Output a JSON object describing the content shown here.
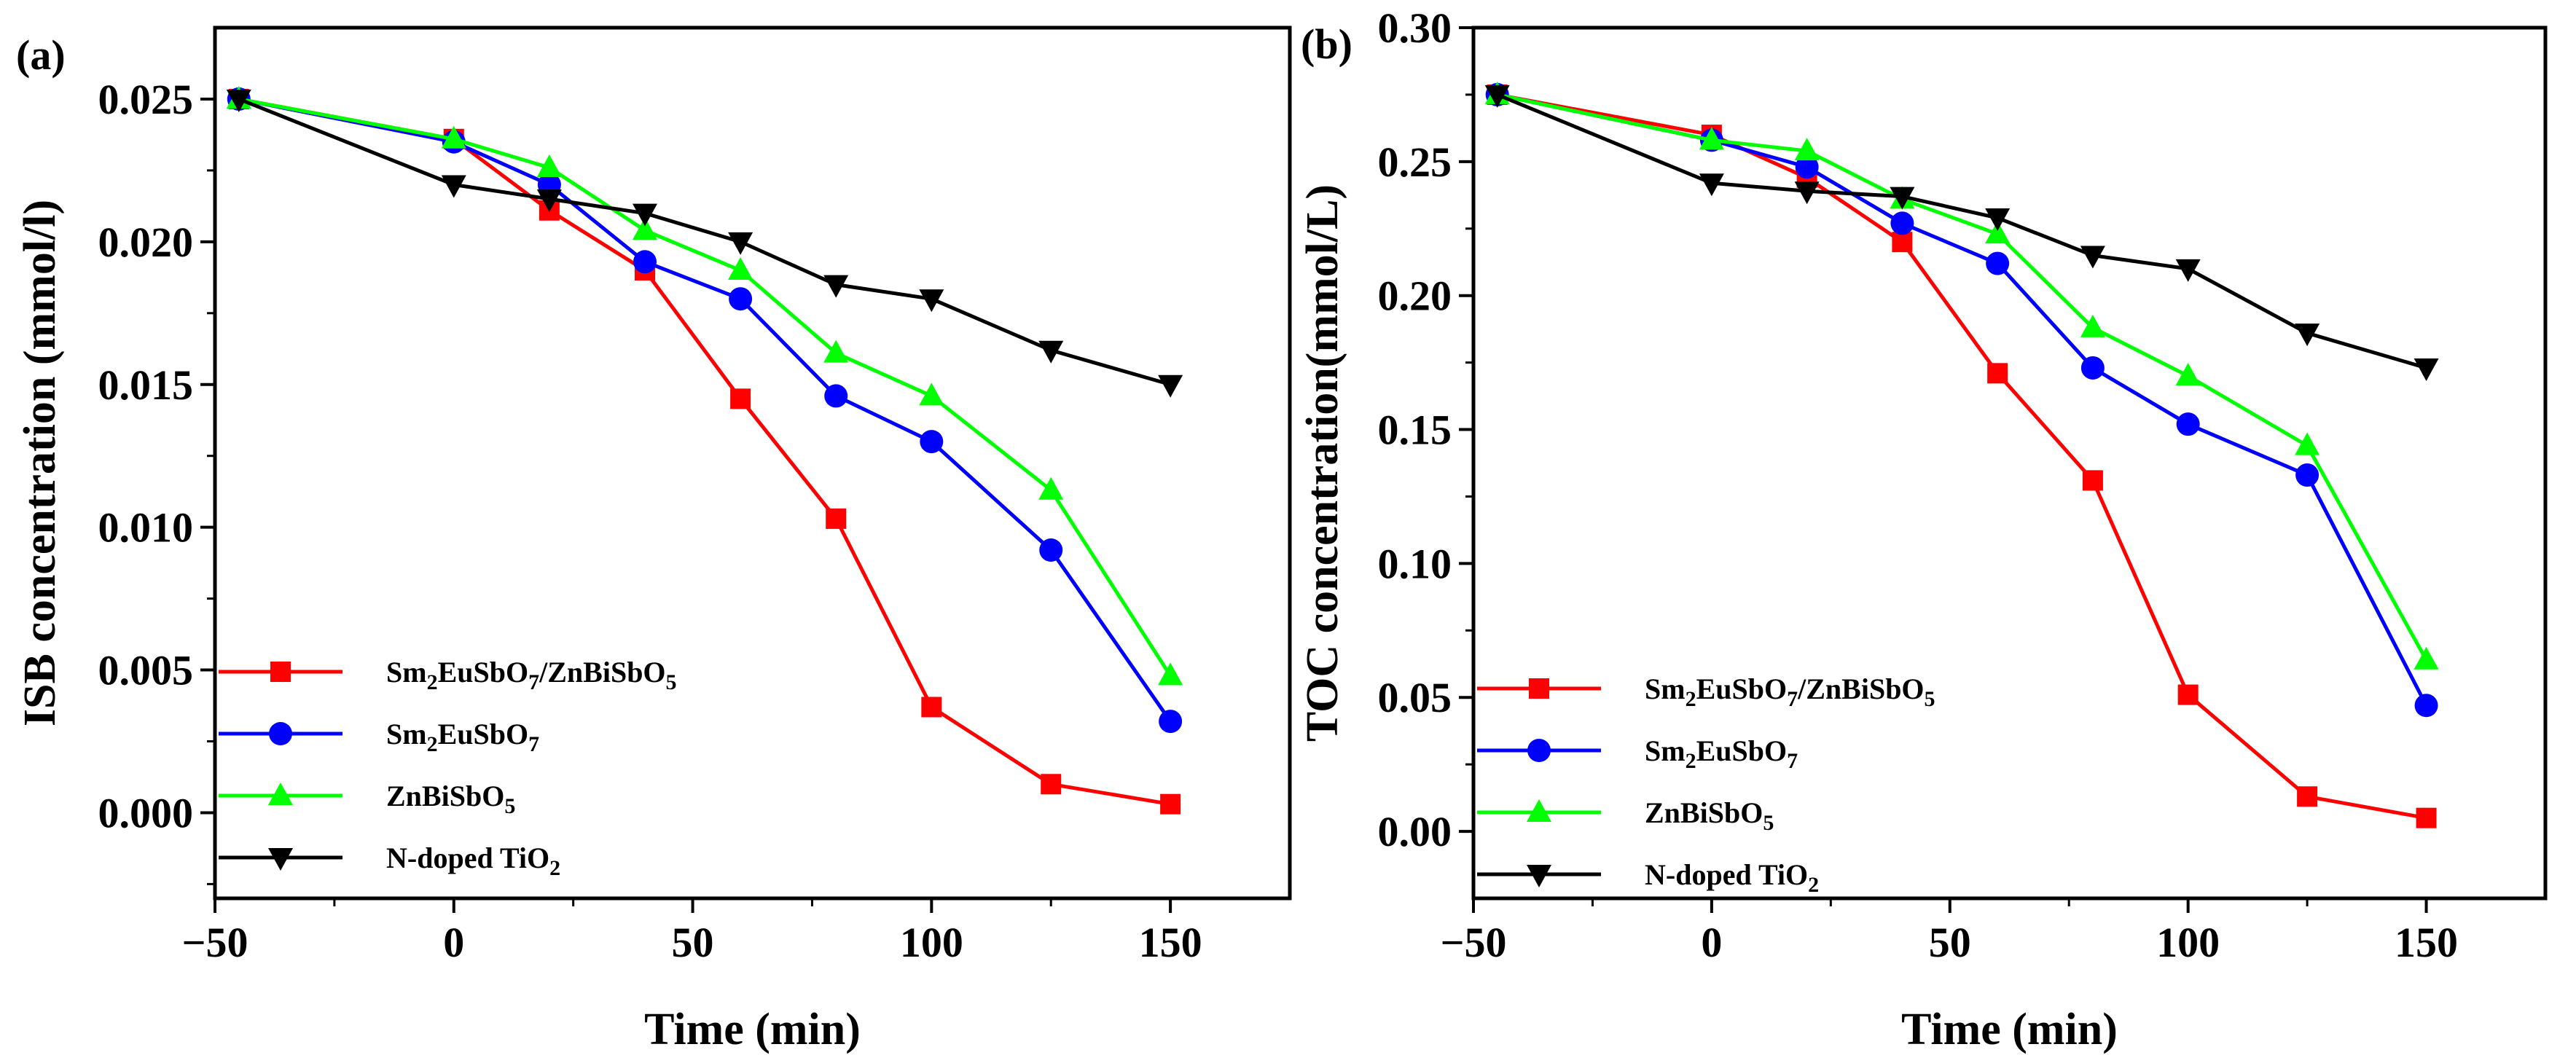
{
  "chart_data": [
    {
      "type": "line",
      "panel_label": "(a)",
      "xlabel": "Time (min)",
      "ylabel": "ISB concentration (mmol/l)",
      "xlim": [
        -50,
        175
      ],
      "ylim": [
        -0.003,
        0.0275
      ],
      "xticks": [
        -50,
        0,
        50,
        100,
        150
      ],
      "xtick_labels": [
        "−50",
        "0",
        "50",
        "100",
        "150"
      ],
      "yticks": [
        0.0,
        0.005,
        0.01,
        0.015,
        0.02,
        0.025
      ],
      "ytick_labels": [
        "0.000",
        "0.005",
        "0.010",
        "0.015",
        "0.020",
        "0.025"
      ],
      "legend_position": "bottom-left",
      "series": [
        {
          "name": "Sm2EuSbO7/ZnBiSbO5",
          "label_parts": [
            [
              "Sm",
              ""
            ],
            [
              "2",
              "sub"
            ],
            [
              "EuSbO",
              ""
            ],
            [
              "7",
              "sub"
            ],
            [
              "/ZnBiSbO",
              ""
            ],
            [
              "5",
              "sub"
            ]
          ],
          "color": "#ff0000",
          "marker": "square",
          "x": [
            -45,
            0,
            20,
            40,
            60,
            80,
            100,
            125,
            150
          ],
          "y": [
            0.025,
            0.0236,
            0.0211,
            0.019,
            0.0145,
            0.0103,
            0.0037,
            0.001,
            0.0003
          ]
        },
        {
          "name": "Sm2EuSbO7",
          "label_parts": [
            [
              "Sm",
              ""
            ],
            [
              "2",
              "sub"
            ],
            [
              "EuSbO",
              ""
            ],
            [
              "7",
              "sub"
            ]
          ],
          "color": "#0000ff",
          "marker": "circle",
          "x": [
            -45,
            0,
            20,
            40,
            60,
            80,
            100,
            125,
            150
          ],
          "y": [
            0.025,
            0.0235,
            0.022,
            0.0193,
            0.018,
            0.0146,
            0.013,
            0.0092,
            0.0032
          ]
        },
        {
          "name": "ZnBiSbO5",
          "label_parts": [
            [
              "ZnBiSbO",
              ""
            ],
            [
              "5",
              "sub"
            ]
          ],
          "color": "#00ff00",
          "marker": "triangle-up",
          "x": [
            -45,
            0,
            20,
            40,
            60,
            80,
            100,
            125,
            150
          ],
          "y": [
            0.025,
            0.0236,
            0.0226,
            0.0204,
            0.019,
            0.0161,
            0.0146,
            0.0113,
            0.0048
          ]
        },
        {
          "name": "N-doped TiO2",
          "label_parts": [
            [
              "N-doped TiO",
              ""
            ],
            [
              "2",
              "sub"
            ]
          ],
          "color": "#000000",
          "marker": "triangle-down",
          "x": [
            -45,
            0,
            20,
            40,
            60,
            80,
            100,
            125,
            150
          ],
          "y": [
            0.025,
            0.022,
            0.0215,
            0.021,
            0.02,
            0.0185,
            0.018,
            0.0162,
            0.015
          ]
        }
      ]
    },
    {
      "type": "line",
      "panel_label": "(b)",
      "xlabel": "Time (min)",
      "ylabel": "TOC concentration(mmol/L)",
      "xlim": [
        -50,
        175
      ],
      "ylim": [
        -0.025,
        0.3
      ],
      "xticks": [
        -50,
        0,
        50,
        100,
        150
      ],
      "xtick_labels": [
        "−50",
        "0",
        "50",
        "100",
        "150"
      ],
      "yticks": [
        0.0,
        0.05,
        0.1,
        0.15,
        0.2,
        0.25,
        0.3
      ],
      "ytick_labels": [
        "0.00",
        "0.05",
        "0.10",
        "0.15",
        "0.20",
        "0.25",
        "0.30"
      ],
      "legend_position": "bottom-left",
      "series": [
        {
          "name": "Sm2EuSbO7/ZnBiSbO5",
          "label_parts": [
            [
              "Sm",
              ""
            ],
            [
              "2",
              "sub"
            ],
            [
              "EuSbO",
              ""
            ],
            [
              "7",
              "sub"
            ],
            [
              "/ZnBiSbO",
              ""
            ],
            [
              "5",
              "sub"
            ]
          ],
          "color": "#ff0000",
          "marker": "square",
          "x": [
            -45,
            0,
            20,
            40,
            60,
            80,
            100,
            125,
            150
          ],
          "y": [
            0.275,
            0.26,
            0.244,
            0.22,
            0.171,
            0.131,
            0.051,
            0.013,
            0.005
          ]
        },
        {
          "name": "Sm2EuSbO7",
          "label_parts": [
            [
              "Sm",
              ""
            ],
            [
              "2",
              "sub"
            ],
            [
              "EuSbO",
              ""
            ],
            [
              "7",
              "sub"
            ]
          ],
          "color": "#0000ff",
          "marker": "circle",
          "x": [
            -45,
            0,
            20,
            40,
            60,
            80,
            100,
            125,
            150
          ],
          "y": [
            0.275,
            0.258,
            0.248,
            0.227,
            0.212,
            0.173,
            0.152,
            0.133,
            0.047
          ]
        },
        {
          "name": "ZnBiSbO5",
          "label_parts": [
            [
              "ZnBiSbO",
              ""
            ],
            [
              "5",
              "sub"
            ]
          ],
          "color": "#00ff00",
          "marker": "triangle-up",
          "x": [
            -45,
            0,
            20,
            40,
            60,
            80,
            100,
            125,
            150
          ],
          "y": [
            0.275,
            0.258,
            0.254,
            0.236,
            0.223,
            0.188,
            0.17,
            0.144,
            0.064
          ]
        },
        {
          "name": "N-doped TiO2",
          "label_parts": [
            [
              "N-doped TiO",
              ""
            ],
            [
              "2",
              "sub"
            ]
          ],
          "color": "#000000",
          "marker": "triangle-down",
          "x": [
            -45,
            0,
            20,
            40,
            60,
            80,
            100,
            125,
            150
          ],
          "y": [
            0.275,
            0.242,
            0.239,
            0.237,
            0.229,
            0.215,
            0.21,
            0.186,
            0.173
          ]
        }
      ]
    }
  ]
}
